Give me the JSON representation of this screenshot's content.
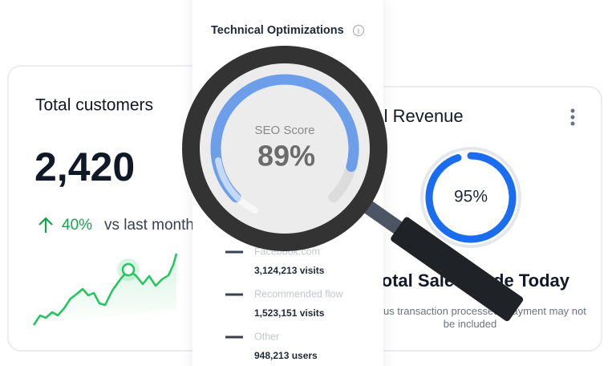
{
  "left_card": {
    "title": "Total customers",
    "value": "2,420",
    "change": "40%",
    "change_note": "vs last month"
  },
  "middle_card": {
    "title": "Technical Optimizations",
    "gauge": {
      "label": "SEO Score",
      "value": 89,
      "value_label": "89%"
    },
    "sources": [
      {
        "name": "Facebook.com",
        "count": "3,124,213 visits"
      },
      {
        "name": "Recommended flow",
        "count": "1,523,151 visits"
      },
      {
        "name": "Other",
        "count": "948,213 users"
      }
    ]
  },
  "right_card": {
    "title": "Total Revenue",
    "gauge": {
      "value": 95,
      "value_label": "95%"
    },
    "heading": "Total Sales Made Today",
    "note": "Previous transaction processed. Payment may not be included"
  }
}
